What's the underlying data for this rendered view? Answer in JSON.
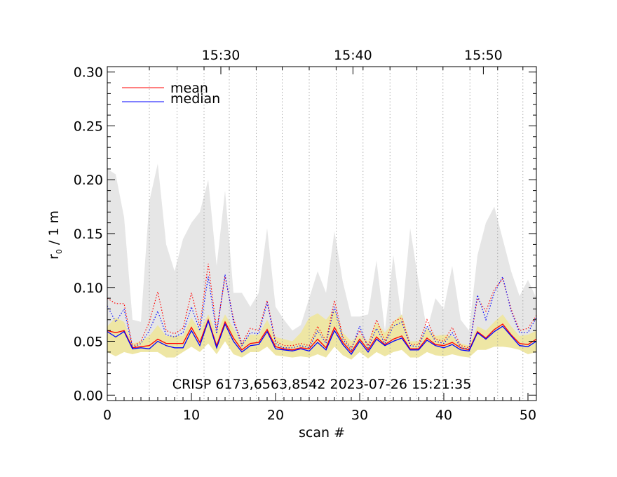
{
  "chart_data": {
    "type": "line",
    "xlabel": "scan #",
    "ylabel_main": "r",
    "ylabel_sub": "0",
    "ylabel_rest": " / 1 m",
    "annotation": "CRISP 6173,6563,8542 2023-07-26 15:21:35",
    "xlim": [
      0,
      51
    ],
    "ylim": [
      -0.005,
      0.305
    ],
    "xticks": [
      0,
      10,
      20,
      30,
      40,
      50
    ],
    "xtick_labels": [
      "0",
      "10",
      "20",
      "30",
      "40",
      "50"
    ],
    "yticks": [
      0.0,
      0.05,
      0.1,
      0.15,
      0.2,
      0.25,
      0.3
    ],
    "ytick_labels": [
      "0.00",
      "0.05",
      "0.10",
      "0.15",
      "0.20",
      "0.25",
      "0.30"
    ],
    "time_ticks": [
      {
        "label": "15:30",
        "scan": 13.5
      },
      {
        "label": "15:40",
        "scan": 29.2
      },
      {
        "label": "15:50",
        "scan": 44.7
      }
    ],
    "time_gridlines_scan": [
      5.0,
      8.3,
      11.5,
      14.5,
      17.7,
      20.8,
      24.0,
      27.2,
      30.4,
      33.6,
      36.8,
      39.9,
      43.1,
      46.4,
      49.4
    ],
    "legend": [
      {
        "label": "mean",
        "color": "#ff0000"
      },
      {
        "label": "median",
        "color": "#0000ff"
      }
    ],
    "colors": {
      "mean": "#ff0000",
      "median": "#0000ff",
      "max_band": "#e6e6e6",
      "range_band": "#eee6a4"
    },
    "grey_band": {
      "name": "max",
      "x": [
        0,
        1,
        2,
        3,
        4,
        5,
        6,
        7,
        8,
        9,
        10,
        11,
        12,
        13,
        14,
        15,
        16,
        17,
        18,
        19,
        20,
        21,
        22,
        23,
        24,
        25,
        26,
        27,
        28,
        29,
        30,
        31,
        32,
        33,
        34,
        35,
        36,
        37,
        38,
        39,
        40,
        41,
        42,
        43,
        44,
        45,
        46,
        47,
        48,
        49,
        50,
        51
      ],
      "upper": [
        0.21,
        0.205,
        0.165,
        0.07,
        0.068,
        0.18,
        0.215,
        0.14,
        0.115,
        0.145,
        0.16,
        0.17,
        0.2,
        0.12,
        0.19,
        0.095,
        0.095,
        0.082,
        0.095,
        0.155,
        0.082,
        0.07,
        0.06,
        0.065,
        0.09,
        0.115,
        0.095,
        0.152,
        0.105,
        0.073,
        0.073,
        0.075,
        0.125,
        0.06,
        0.13,
        0.07,
        0.155,
        0.105,
        0.06,
        0.09,
        0.08,
        0.12,
        0.07,
        0.06,
        0.13,
        0.16,
        0.175,
        0.145,
        0.115,
        0.092,
        0.107,
        0.09
      ],
      "lower": [
        0.055,
        0.055,
        0.058,
        0.042,
        0.045,
        0.048,
        0.052,
        0.046,
        0.046,
        0.046,
        0.062,
        0.048,
        0.07,
        0.046,
        0.068,
        0.052,
        0.04,
        0.048,
        0.048,
        0.06,
        0.044,
        0.042,
        0.042,
        0.043,
        0.042,
        0.05,
        0.043,
        0.062,
        0.048,
        0.04,
        0.05,
        0.042,
        0.052,
        0.047,
        0.05,
        0.053,
        0.042,
        0.042,
        0.052,
        0.046,
        0.045,
        0.047,
        0.043,
        0.041,
        0.058,
        0.052,
        0.06,
        0.065,
        0.055,
        0.047,
        0.047,
        0.052
      ]
    },
    "yellow_band": {
      "name": "range",
      "x": [
        0,
        1,
        2,
        3,
        4,
        5,
        6,
        7,
        8,
        9,
        10,
        11,
        12,
        13,
        14,
        15,
        16,
        17,
        18,
        19,
        20,
        21,
        22,
        23,
        24,
        25,
        26,
        27,
        28,
        29,
        30,
        31,
        32,
        33,
        34,
        35,
        36,
        37,
        38,
        39,
        40,
        41,
        42,
        43,
        44,
        45,
        46,
        47,
        48,
        49,
        50,
        51
      ],
      "upper": [
        0.064,
        0.072,
        0.068,
        0.048,
        0.05,
        0.055,
        0.065,
        0.055,
        0.055,
        0.055,
        0.072,
        0.06,
        0.075,
        0.058,
        0.075,
        0.062,
        0.048,
        0.056,
        0.056,
        0.07,
        0.054,
        0.052,
        0.05,
        0.058,
        0.072,
        0.076,
        0.07,
        0.08,
        0.058,
        0.05,
        0.056,
        0.05,
        0.068,
        0.058,
        0.068,
        0.075,
        0.05,
        0.05,
        0.062,
        0.055,
        0.056,
        0.055,
        0.048,
        0.046,
        0.064,
        0.06,
        0.068,
        0.075,
        0.064,
        0.055,
        0.056,
        0.06
      ],
      "lower": [
        0.04,
        0.036,
        0.04,
        0.038,
        0.04,
        0.04,
        0.04,
        0.035,
        0.035,
        0.04,
        0.045,
        0.04,
        0.048,
        0.038,
        0.05,
        0.038,
        0.035,
        0.04,
        0.04,
        0.045,
        0.037,
        0.036,
        0.035,
        0.036,
        0.035,
        0.038,
        0.035,
        0.045,
        0.037,
        0.033,
        0.04,
        0.034,
        0.04,
        0.036,
        0.04,
        0.042,
        0.035,
        0.035,
        0.04,
        0.037,
        0.036,
        0.038,
        0.036,
        0.035,
        0.042,
        0.042,
        0.045,
        0.045,
        0.044,
        0.042,
        0.038,
        0.04
      ]
    },
    "series": [
      {
        "name": "mean",
        "style": "solid",
        "color": "#ff0000",
        "values": [
          0.06,
          0.058,
          0.06,
          0.044,
          0.045,
          0.046,
          0.052,
          0.048,
          0.048,
          0.048,
          0.063,
          0.049,
          0.07,
          0.046,
          0.068,
          0.053,
          0.042,
          0.048,
          0.049,
          0.061,
          0.045,
          0.043,
          0.042,
          0.044,
          0.043,
          0.052,
          0.044,
          0.063,
          0.049,
          0.04,
          0.052,
          0.042,
          0.054,
          0.047,
          0.052,
          0.055,
          0.043,
          0.043,
          0.053,
          0.047,
          0.046,
          0.049,
          0.044,
          0.042,
          0.059,
          0.053,
          0.061,
          0.066,
          0.056,
          0.048,
          0.047,
          0.052
        ]
      },
      {
        "name": "median",
        "style": "solid",
        "color": "#0000ff",
        "values": [
          0.059,
          0.054,
          0.059,
          0.043,
          0.044,
          0.043,
          0.05,
          0.046,
          0.044,
          0.044,
          0.06,
          0.046,
          0.069,
          0.044,
          0.066,
          0.05,
          0.04,
          0.046,
          0.047,
          0.059,
          0.043,
          0.042,
          0.041,
          0.043,
          0.041,
          0.049,
          0.042,
          0.06,
          0.047,
          0.038,
          0.05,
          0.04,
          0.052,
          0.046,
          0.05,
          0.053,
          0.042,
          0.042,
          0.051,
          0.046,
          0.044,
          0.047,
          0.042,
          0.041,
          0.058,
          0.052,
          0.059,
          0.064,
          0.055,
          0.046,
          0.045,
          0.05
        ]
      },
      {
        "name": "mean (dotted)",
        "style": "dotted",
        "color": "#ff0000",
        "values": [
          0.09,
          0.085,
          0.085,
          0.045,
          0.05,
          0.068,
          0.096,
          0.06,
          0.057,
          0.062,
          0.095,
          0.064,
          0.122,
          0.06,
          0.11,
          0.071,
          0.048,
          0.062,
          0.06,
          0.088,
          0.05,
          0.046,
          0.046,
          0.048,
          0.046,
          0.064,
          0.05,
          0.088,
          0.054,
          0.044,
          0.06,
          0.046,
          0.07,
          0.05,
          0.068,
          0.072,
          0.047,
          0.047,
          0.07,
          0.052,
          0.05,
          0.063,
          0.046,
          0.044,
          0.09,
          0.078,
          0.098,
          0.108,
          0.08,
          0.06,
          0.062,
          0.074
        ]
      },
      {
        "name": "median (dotted)",
        "style": "dotted",
        "color": "#0000ff",
        "values": [
          0.083,
          0.068,
          0.08,
          0.044,
          0.048,
          0.06,
          0.078,
          0.056,
          0.054,
          0.058,
          0.082,
          0.06,
          0.11,
          0.057,
          0.112,
          0.068,
          0.046,
          0.058,
          0.057,
          0.086,
          0.048,
          0.044,
          0.044,
          0.046,
          0.044,
          0.06,
          0.048,
          0.082,
          0.052,
          0.042,
          0.064,
          0.044,
          0.062,
          0.048,
          0.064,
          0.068,
          0.046,
          0.045,
          0.064,
          0.05,
          0.048,
          0.058,
          0.044,
          0.043,
          0.093,
          0.07,
          0.095,
          0.11,
          0.078,
          0.058,
          0.058,
          0.072
        ]
      }
    ]
  }
}
